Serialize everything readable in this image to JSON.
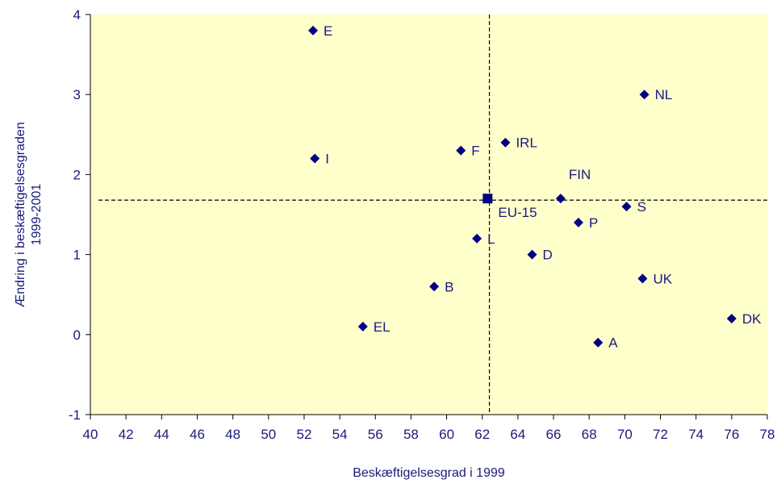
{
  "chart_data": {
    "type": "scatter",
    "title": "",
    "xlabel": "Beskæftigelsesgrad i 1999",
    "ylabel_lines": [
      "Ændring i beskæftigelsesgraden",
      "1999-2001"
    ],
    "xlim": [
      40,
      78
    ],
    "ylim": [
      -1,
      4
    ],
    "x_ticks": [
      "40",
      "42",
      "44",
      "46",
      "48",
      "50",
      "52",
      "54",
      "56",
      "58",
      "60",
      "62",
      "64",
      "66",
      "68",
      "70",
      "72",
      "74",
      "76",
      "78"
    ],
    "y_ticks": [
      "4",
      "3",
      "2",
      "1",
      "0",
      "-1"
    ],
    "grid": false,
    "legend": "none",
    "colors": {
      "plot_bg": "#ffffcc",
      "marker": "#000080",
      "text": "#1a1a7a",
      "axis": "#000000"
    },
    "reference_lines": {
      "x": 62.4,
      "y": 1.68
    },
    "points": [
      {
        "label": "E",
        "x": 52.5,
        "y": 3.8,
        "marker": "diamond",
        "label_pos": "right"
      },
      {
        "label": "NL",
        "x": 71.1,
        "y": 3.0,
        "marker": "diamond",
        "label_pos": "right"
      },
      {
        "label": "IRL",
        "x": 63.3,
        "y": 2.4,
        "marker": "diamond",
        "label_pos": "right"
      },
      {
        "label": "F",
        "x": 60.8,
        "y": 2.3,
        "marker": "diamond",
        "label_pos": "right"
      },
      {
        "label": "I",
        "x": 52.6,
        "y": 2.2,
        "marker": "diamond",
        "label_pos": "right"
      },
      {
        "label": "FIN",
        "x": 66.4,
        "y": 1.7,
        "marker": "diamond",
        "label_pos": "above"
      },
      {
        "label": "EU-15",
        "x": 62.3,
        "y": 1.7,
        "marker": "square",
        "label_pos": "below-right"
      },
      {
        "label": "S",
        "x": 70.1,
        "y": 1.6,
        "marker": "diamond",
        "label_pos": "right"
      },
      {
        "label": "P",
        "x": 67.4,
        "y": 1.4,
        "marker": "diamond",
        "label_pos": "right"
      },
      {
        "label": "L",
        "x": 61.7,
        "y": 1.2,
        "marker": "diamond",
        "label_pos": "right"
      },
      {
        "label": "D",
        "x": 64.8,
        "y": 1.0,
        "marker": "diamond",
        "label_pos": "right"
      },
      {
        "label": "UK",
        "x": 71.0,
        "y": 0.7,
        "marker": "diamond",
        "label_pos": "right"
      },
      {
        "label": "B",
        "x": 59.3,
        "y": 0.6,
        "marker": "diamond",
        "label_pos": "right"
      },
      {
        "label": "DK",
        "x": 76.0,
        "y": 0.2,
        "marker": "diamond",
        "label_pos": "right"
      },
      {
        "label": "EL",
        "x": 55.3,
        "y": 0.1,
        "marker": "diamond",
        "label_pos": "right"
      },
      {
        "label": "A",
        "x": 68.5,
        "y": -0.1,
        "marker": "diamond",
        "label_pos": "right"
      }
    ]
  }
}
